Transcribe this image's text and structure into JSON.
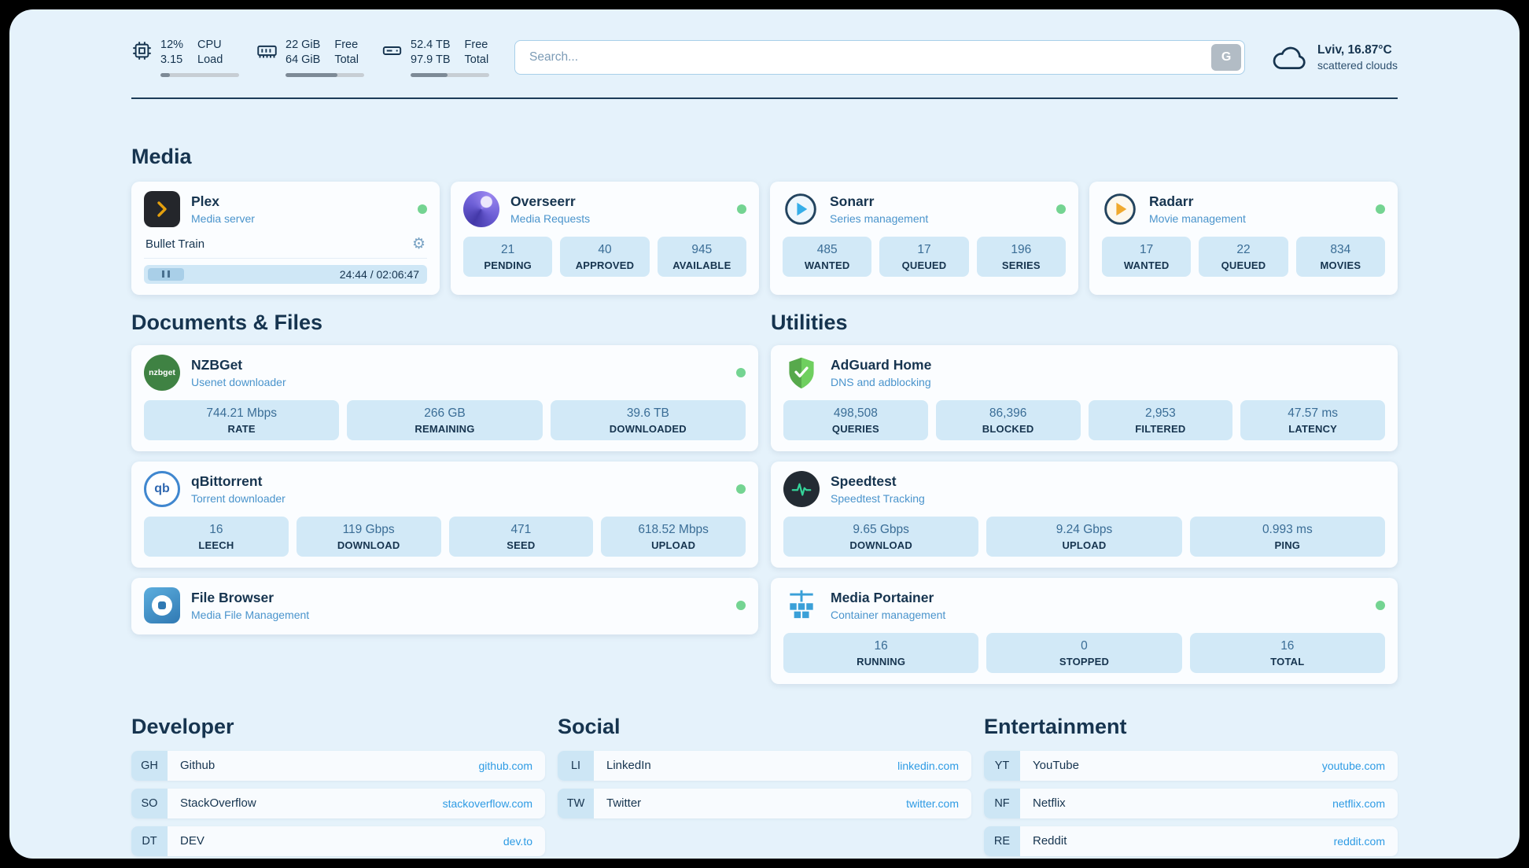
{
  "colors": {
    "frame_bg": "#000000",
    "panel_bg": "#e5f2fb",
    "card_bg": "#fbfdff",
    "stat_box_bg": "#d2e9f7",
    "heading_text": "#16344f",
    "subtitle_text": "#4a94cc",
    "link_text": "#2e9be4",
    "status_online": "#74d492",
    "plex_accent": "#e5a00d"
  },
  "icons": {
    "cpu-icon": "chip-outline",
    "memory-icon": "ram-stick-outline",
    "storage-icon": "hard-drive-outline",
    "weather-icon": "cloud-outline",
    "search-provider-icon": "G",
    "plex-icon": "dark-square-amber-chevron",
    "overseerr-icon": "purple-swirl-circle",
    "sonarr-icon": "blue-play-circle",
    "radarr-icon": "amber-play-circle",
    "nzbget-icon": "green-circle-wordmark",
    "qbittorrent-icon": "blue-ring-qb",
    "filebrowser-icon": "blue-square-white-disc",
    "adguard-icon": "green-shield-check",
    "speedtest-icon": "dark-circle-green-pulse",
    "portainer-icon": "blue-crane-containers",
    "gear-icon": "⚙",
    "pause-icon": "❚❚",
    "status-dot": "green-circle"
  },
  "topbar": {
    "metrics": [
      {
        "icon": "cpu-icon",
        "value_top": "12%",
        "value_bottom": "3.15",
        "label_top": "CPU",
        "label_bottom": "Load",
        "progress_pct": 12
      },
      {
        "icon": "memory-icon",
        "value_top": "22 GiB",
        "value_bottom": "64 GiB",
        "label_top": "Free",
        "label_bottom": "Total",
        "progress_pct": 66
      },
      {
        "icon": "storage-icon",
        "value_top": "52.4 TB",
        "value_bottom": "97.9 TB",
        "label_top": "Free",
        "label_bottom": "Total",
        "progress_pct": 47
      }
    ],
    "search": {
      "placeholder": "Search...",
      "button_label": "G"
    },
    "weather": {
      "location": "Lviv, 16.87°C",
      "condition": "scattered clouds"
    }
  },
  "sections": {
    "media": {
      "title": "Media",
      "plex": {
        "name": "Plex",
        "subtitle": "Media server",
        "status": "online",
        "now_playing": "Bullet Train",
        "time": "24:44 / 02:06:47"
      },
      "overseerr": {
        "name": "Overseerr",
        "subtitle": "Media Requests",
        "status": "online",
        "stats": [
          {
            "value": "21",
            "label": "PENDING"
          },
          {
            "value": "40",
            "label": "APPROVED"
          },
          {
            "value": "945",
            "label": "AVAILABLE"
          }
        ]
      },
      "sonarr": {
        "name": "Sonarr",
        "subtitle": "Series management",
        "status": "online",
        "stats": [
          {
            "value": "485",
            "label": "WANTED"
          },
          {
            "value": "17",
            "label": "QUEUED"
          },
          {
            "value": "196",
            "label": "SERIES"
          }
        ]
      },
      "radarr": {
        "name": "Radarr",
        "subtitle": "Movie management",
        "status": "online",
        "stats": [
          {
            "value": "17",
            "label": "WANTED"
          },
          {
            "value": "22",
            "label": "QUEUED"
          },
          {
            "value": "834",
            "label": "MOVIES"
          }
        ]
      }
    },
    "documents": {
      "title": "Documents & Files",
      "nzbget": {
        "name": "NZBGet",
        "subtitle": "Usenet downloader",
        "status": "online",
        "icon_text": "nzbget",
        "stats": [
          {
            "value": "744.21 Mbps",
            "label": "RATE"
          },
          {
            "value": "266 GB",
            "label": "REMAINING"
          },
          {
            "value": "39.6 TB",
            "label": "DOWNLOADED"
          }
        ]
      },
      "qbittorrent": {
        "name": "qBittorrent",
        "subtitle": "Torrent downloader",
        "status": "online",
        "icon_text": "qb",
        "stats": [
          {
            "value": "16",
            "label": "LEECH"
          },
          {
            "value": "119 Gbps",
            "label": "DOWNLOAD"
          },
          {
            "value": "471",
            "label": "SEED"
          },
          {
            "value": "618.52 Mbps",
            "label": "UPLOAD"
          }
        ]
      },
      "filebrowser": {
        "name": "File Browser",
        "subtitle": "Media File Management",
        "status": "online"
      }
    },
    "utilities": {
      "title": "Utilities",
      "adguard": {
        "name": "AdGuard Home",
        "subtitle": "DNS and adblocking",
        "stats": [
          {
            "value": "498,508",
            "label": "QUERIES"
          },
          {
            "value": "86,396",
            "label": "BLOCKED"
          },
          {
            "value": "2,953",
            "label": "FILTERED"
          },
          {
            "value": "47.57 ms",
            "label": "LATENCY"
          }
        ]
      },
      "speedtest": {
        "name": "Speedtest",
        "subtitle": "Speedtest Tracking",
        "stats": [
          {
            "value": "9.65 Gbps",
            "label": "DOWNLOAD"
          },
          {
            "value": "9.24 Gbps",
            "label": "UPLOAD"
          },
          {
            "value": "0.993 ms",
            "label": "PING"
          }
        ]
      },
      "portainer": {
        "name": "Media Portainer",
        "subtitle": "Container management",
        "status": "online",
        "stats": [
          {
            "value": "16",
            "label": "RUNNING"
          },
          {
            "value": "0",
            "label": "STOPPED"
          },
          {
            "value": "16",
            "label": "TOTAL"
          }
        ]
      }
    },
    "developer": {
      "title": "Developer",
      "links": [
        {
          "abbr": "GH",
          "name": "Github",
          "url": "github.com"
        },
        {
          "abbr": "SO",
          "name": "StackOverflow",
          "url": "stackoverflow.com"
        },
        {
          "abbr": "DT",
          "name": "DEV",
          "url": "dev.to"
        }
      ]
    },
    "social": {
      "title": "Social",
      "links": [
        {
          "abbr": "LI",
          "name": "LinkedIn",
          "url": "linkedin.com"
        },
        {
          "abbr": "TW",
          "name": "Twitter",
          "url": "twitter.com"
        }
      ]
    },
    "entertainment": {
      "title": "Entertainment",
      "links": [
        {
          "abbr": "YT",
          "name": "YouTube",
          "url": "youtube.com"
        },
        {
          "abbr": "NF",
          "name": "Netflix",
          "url": "netflix.com"
        },
        {
          "abbr": "RE",
          "name": "Reddit",
          "url": "reddit.com"
        }
      ]
    }
  }
}
